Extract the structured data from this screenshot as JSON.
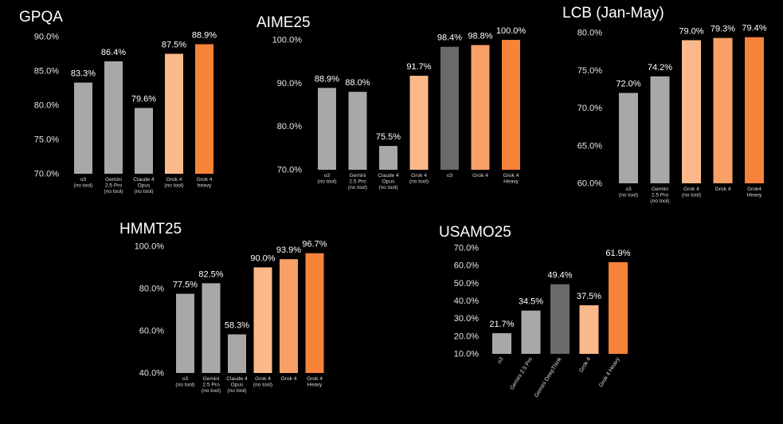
{
  "chart_data": [
    {
      "type": "bar",
      "title": "GPQA",
      "categories": [
        [
          "o3",
          "(no tool)"
        ],
        [
          "Gemini",
          "2.5 Pro",
          "(no tool)"
        ],
        [
          "Claude 4",
          "Opus",
          "(no tool)"
        ],
        [
          "Grok 4",
          "(no tool)"
        ],
        [
          "Grok 4",
          "heavy"
        ]
      ],
      "values": [
        83.3,
        86.4,
        79.6,
        87.5,
        88.9
      ],
      "value_labels": [
        "83.3%",
        "86.4%",
        "79.6%",
        "87.5%",
        "88.9%"
      ],
      "colors": [
        "#a8a8a8",
        "#a8a8a8",
        "#a8a8a8",
        "#fbb88a",
        "#f7823a"
      ],
      "ylim": [
        70,
        90
      ],
      "yticks": [
        "70.0%",
        "75.0%",
        "80.0%",
        "85.0%",
        "90.0%"
      ],
      "grid": false,
      "xlabel_style": "horizontal"
    },
    {
      "type": "bar",
      "title": "AIME25",
      "categories": [
        [
          "o3",
          "(no tool)"
        ],
        [
          "Gemini",
          "2.5 Pro",
          "(no tool)"
        ],
        [
          "Claude 4",
          "Opus",
          "(no tool)"
        ],
        [
          "Grok 4",
          "(no tool)"
        ],
        [
          "o3"
        ],
        [
          "Grok 4"
        ],
        [
          "Grok 4",
          "Heavy"
        ]
      ],
      "values": [
        88.9,
        88.0,
        75.5,
        91.7,
        98.4,
        98.8,
        100.0
      ],
      "value_labels": [
        "88.9%",
        "88.0%",
        "75.5%",
        "91.7%",
        "98.4%",
        "98.8%",
        "100.0%"
      ],
      "colors": [
        "#a8a8a8",
        "#a8a8a8",
        "#a8a8a8",
        "#fbb88a",
        "#6a6a68",
        "#f9a068",
        "#f7823a"
      ],
      "ylim": [
        70,
        100
      ],
      "yticks": [
        "70.0%",
        "80.0%",
        "90.0%",
        "100.0%"
      ],
      "grid": false,
      "xlabel_style": "horizontal"
    },
    {
      "type": "bar",
      "title": "LCB (Jan-May)",
      "categories": [
        [
          "o3",
          "(no tool)"
        ],
        [
          "Gemini",
          "2.5 Pro",
          "(no tool)"
        ],
        [
          "Grok 4",
          "(no tool)"
        ],
        [
          "Grok 4"
        ],
        [
          "Grok4",
          "Heavy"
        ]
      ],
      "values": [
        72.0,
        74.2,
        79.0,
        79.3,
        79.4
      ],
      "value_labels": [
        "72.0%",
        "74.2%",
        "79.0%",
        "79.3%",
        "79.4%"
      ],
      "colors": [
        "#a8a8a8",
        "#a8a8a8",
        "#fbb88a",
        "#f9a068",
        "#f7823a"
      ],
      "ylim": [
        60,
        80
      ],
      "yticks": [
        "60.0%",
        "65.0%",
        "70.0%",
        "75.0%",
        "80.0%"
      ],
      "grid": false,
      "xlabel_style": "horizontal"
    },
    {
      "type": "bar",
      "title": "HMMT25",
      "categories": [
        [
          "o3",
          "(no tool)"
        ],
        [
          "Gemini",
          "2.5 Pro",
          "(no tool)"
        ],
        [
          "Claude 4",
          "Opus",
          "(no tool)"
        ],
        [
          "Grok 4",
          "(no tool)"
        ],
        [
          "Grok 4"
        ],
        [
          "Grok 4",
          "Heavy"
        ]
      ],
      "values": [
        77.5,
        82.5,
        58.3,
        90.0,
        93.9,
        96.7
      ],
      "value_labels": [
        "77.5%",
        "82.5%",
        "58.3%",
        "90.0%",
        "93.9%",
        "96.7%"
      ],
      "colors": [
        "#a8a8a8",
        "#a8a8a8",
        "#a8a8a8",
        "#fbb88a",
        "#f9a068",
        "#f7823a"
      ],
      "ylim": [
        40,
        100
      ],
      "yticks": [
        "40.0%",
        "60.0%",
        "80.0%",
        "100.0%"
      ],
      "grid": false,
      "xlabel_style": "horizontal"
    },
    {
      "type": "bar",
      "title": "USAMO25",
      "categories": [
        [
          "o3"
        ],
        [
          "Gemini 2.5 Pro"
        ],
        [
          "Gemini DeepThink"
        ],
        [
          "Grok 4"
        ],
        [
          "Grok 4 Heavy"
        ]
      ],
      "values": [
        21.7,
        34.5,
        49.4,
        37.5,
        61.9
      ],
      "value_labels": [
        "21.7%",
        "34.5%",
        "49.4%",
        "37.5%",
        "61.9%"
      ],
      "colors": [
        "#a8a8a8",
        "#a8a8a8",
        "#6a6a68",
        "#fbb88a",
        "#f7823a"
      ],
      "ylim": [
        10,
        70
      ],
      "yticks": [
        "10.0%",
        "20.0%",
        "30.0%",
        "40.0%",
        "50.0%",
        "60.0%",
        "70.0%"
      ],
      "grid": false,
      "xlabel_style": "rotated"
    }
  ]
}
